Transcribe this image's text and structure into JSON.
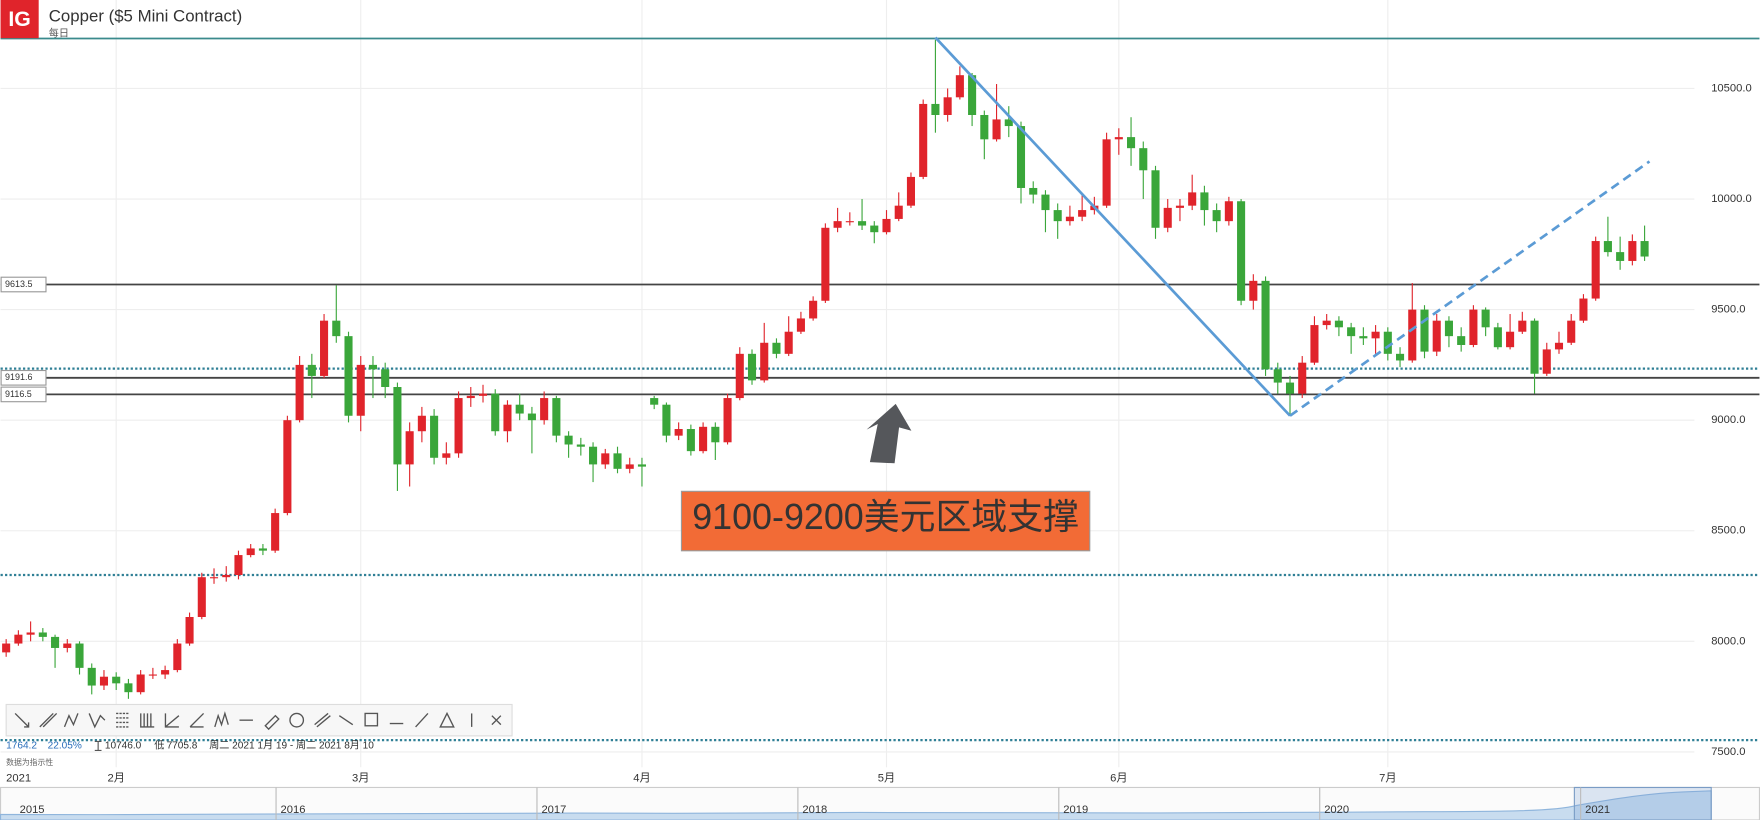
{
  "chart_data": {
    "type": "candlestick",
    "title": "Copper ($5 Mini Contract)",
    "subtitle": "每日",
    "logo": "IG",
    "x_axis_year": "2021",
    "categories": [
      null,
      null,
      null,
      null,
      null,
      null,
      null,
      null,
      null,
      "2月",
      null,
      null,
      null,
      null,
      null,
      null,
      null,
      null,
      null,
      null,
      null,
      null,
      null,
      null,
      null,
      null,
      null,
      null,
      null,
      "3月",
      null,
      null,
      null,
      null,
      null,
      null,
      null,
      null,
      null,
      null,
      null,
      null,
      null,
      null,
      null,
      null,
      null,
      null,
      null,
      null,
      null,
      null,
      "4月",
      null,
      null,
      null,
      null,
      null,
      null,
      null,
      null,
      null,
      null,
      null,
      null,
      null,
      null,
      null,
      null,
      null,
      null,
      null,
      "5月",
      null,
      null,
      null,
      null,
      null,
      null,
      null,
      null,
      null,
      null,
      null,
      null,
      null,
      null,
      null,
      null,
      null,
      null,
      "6月",
      null,
      null,
      null,
      null,
      null,
      null,
      null,
      null,
      null,
      null,
      null,
      null,
      null,
      null,
      null,
      null,
      null,
      null,
      null,
      null,
      null,
      "7月",
      null,
      null,
      null,
      null,
      null,
      null,
      null,
      null,
      null,
      null,
      null,
      null,
      null,
      null,
      null,
      null,
      null,
      null,
      null,
      null,
      null
    ],
    "open": [
      7950,
      7990,
      8030,
      8040,
      8020,
      7970,
      7990,
      7880,
      7800,
      7840,
      7810,
      7770,
      7850,
      7850,
      7870,
      7990,
      8110,
      8290,
      8290,
      8300,
      8390,
      8420,
      8410,
      8580,
      9000,
      9250,
      9200,
      9450,
      9380,
      9020,
      9250,
      9230,
      9150,
      8800,
      8950,
      9020,
      8830,
      8850,
      9100,
      9110,
      9120,
      8950,
      9070,
      9030,
      9000,
      9100,
      8930,
      8890,
      8880,
      8800,
      8850,
      8780,
      8800,
      9100,
      9070,
      8930,
      8960,
      8860,
      8970,
      8900,
      9100,
      9300,
      9180,
      9350,
      9300,
      9400,
      9460,
      9540,
      9870,
      9900,
      9900,
      9880,
      9850,
      9910,
      9970,
      10100,
      10430,
      10380,
      10460,
      10560,
      10380,
      10270,
      10360,
      10330,
      10050,
      10020,
      9950,
      9900,
      9920,
      9950,
      9970,
      10270,
      10280,
      10230,
      10130,
      9870,
      9960,
      9970,
      10030,
      9950,
      9900,
      9990,
      9540,
      9630,
      9230,
      9170,
      9120,
      9260,
      9430,
      9450,
      9420,
      9380,
      9370,
      9400,
      9300,
      9270,
      9500,
      9310,
      9450,
      9380,
      9340,
      9500,
      9420,
      9330,
      9400,
      9450,
      9210,
      9320,
      9350,
      9450,
      9550,
      9810,
      9760,
      9720,
      9810
    ],
    "high": [
      8010,
      8050,
      8090,
      8060,
      8030,
      8010,
      8000,
      7900,
      7870,
      7860,
      7830,
      7870,
      7880,
      7890,
      8010,
      8130,
      8310,
      8330,
      8340,
      8410,
      8440,
      8440,
      8600,
      9020,
      9290,
      9300,
      9480,
      9610,
      9400,
      9290,
      9290,
      9260,
      9170,
      8990,
      9060,
      9050,
      8900,
      9130,
      9150,
      9160,
      9140,
      9090,
      9120,
      9060,
      9130,
      9110,
      8950,
      8920,
      8900,
      8870,
      8880,
      8830,
      8830,
      9110,
      9080,
      8990,
      8980,
      8990,
      8990,
      9120,
      9330,
      9320,
      9440,
      9370,
      9470,
      9490,
      9560,
      9890,
      9960,
      9940,
      10000,
      9900,
      9950,
      10030,
      10120,
      10450,
      10720,
      10500,
      10600,
      10570,
      10400,
      10520,
      10420,
      10350,
      10080,
      10040,
      9980,
      9970,
      10020,
      10010,
      10300,
      10320,
      10370,
      10260,
      10150,
      10000,
      10000,
      10110,
      10060,
      9980,
      10010,
      10000,
      9660,
      9650,
      9260,
      9200,
      9290,
      9470,
      9480,
      9470,
      9440,
      9420,
      9430,
      9420,
      9330,
      9620,
      9520,
      9480,
      9470,
      9420,
      9520,
      9510,
      9440,
      9480,
      9490,
      9460,
      9350,
      9400,
      9480,
      9570,
      9830,
      9920,
      9830,
      9840,
      9880
    ],
    "low": [
      7930,
      7980,
      8000,
      8000,
      7880,
      7950,
      7850,
      7760,
      7780,
      7780,
      7740,
      7760,
      7830,
      7830,
      7860,
      7980,
      8100,
      8260,
      8270,
      8280,
      8380,
      8390,
      8400,
      8570,
      8990,
      9100,
      9190,
      9350,
      8990,
      8950,
      9100,
      9100,
      8680,
      8700,
      8900,
      8800,
      8800,
      8830,
      9060,
      9080,
      8930,
      8900,
      9000,
      8850,
      8980,
      8900,
      8830,
      8840,
      8720,
      8780,
      8760,
      8760,
      8700,
      9050,
      8900,
      8910,
      8840,
      8850,
      8820,
      8890,
      9090,
      9160,
      9170,
      9280,
      9290,
      9390,
      9450,
      9530,
      9850,
      9880,
      9860,
      9800,
      9840,
      9900,
      9960,
      10090,
      10300,
      10350,
      10450,
      10330,
      10180,
      10260,
      10280,
      9980,
      9980,
      9850,
      9820,
      9880,
      9900,
      9930,
      9960,
      10200,
      10150,
      10000,
      9820,
      9850,
      9900,
      9950,
      9880,
      9850,
      9880,
      9520,
      9500,
      9200,
      9120,
      9020,
      9100,
      9250,
      9410,
      9380,
      9300,
      9340,
      9300,
      9270,
      9240,
      9260,
      9280,
      9290,
      9330,
      9310,
      9330,
      9380,
      9320,
      9320,
      9390,
      9120,
      9200,
      9300,
      9340,
      9440,
      9540,
      9740,
      9680,
      9700,
      9720
    ],
    "close": [
      7990,
      8030,
      8040,
      8020,
      7970,
      7990,
      7880,
      7800,
      7840,
      7810,
      7770,
      7850,
      7850,
      7870,
      7990,
      8110,
      8290,
      8290,
      8300,
      8390,
      8420,
      8410,
      8580,
      9000,
      9250,
      9200,
      9450,
      9380,
      9020,
      9250,
      9230,
      9150,
      8800,
      8950,
      9020,
      8830,
      8850,
      9100,
      9110,
      9120,
      8950,
      9070,
      9030,
      9000,
      9100,
      8930,
      8890,
      8880,
      8800,
      8850,
      8780,
      8800,
      8790,
      9070,
      8930,
      8960,
      8860,
      8970,
      8900,
      9100,
      9300,
      9180,
      9350,
      9300,
      9400,
      9460,
      9540,
      9870,
      9900,
      9900,
      9880,
      9850,
      9910,
      9970,
      10100,
      10430,
      10380,
      10460,
      10560,
      10380,
      10270,
      10360,
      10330,
      10050,
      10020,
      9950,
      9900,
      9920,
      9950,
      9970,
      10270,
      10280,
      10230,
      10130,
      9870,
      9960,
      9970,
      10030,
      9950,
      9900,
      9990,
      9540,
      9630,
      9230,
      9170,
      9120,
      9260,
      9430,
      9450,
      9420,
      9380,
      9370,
      9400,
      9300,
      9270,
      9500,
      9310,
      9450,
      9380,
      9340,
      9500,
      9420,
      9330,
      9400,
      9450,
      9210,
      9320,
      9350,
      9450,
      9550,
      9810,
      9760,
      9720,
      9810,
      9740
    ],
    "up_color": "#e0242b",
    "down_color": "#3aa63a",
    "ylim": [
      7400,
      10900
    ],
    "yticks": [
      {
        "value": 10500,
        "label": "10500.0"
      },
      {
        "value": 10000,
        "label": "10000.0"
      },
      {
        "value": 9500,
        "label": "9500.0"
      },
      {
        "value": 9000,
        "label": "9000.0"
      },
      {
        "value": 8500,
        "label": "8500.0"
      },
      {
        "value": 8000,
        "label": "8000.0"
      },
      {
        "value": 7500,
        "label": "7500.0"
      }
    ],
    "grid": true,
    "levels": [
      {
        "value": 10726,
        "style": "solid",
        "color": "#3a8a8c"
      },
      {
        "value": 9613.5,
        "style": "solid",
        "color": "#444444",
        "label_box": true
      },
      {
        "value": 9233,
        "style": "dotted",
        "color": "#2f7f95"
      },
      {
        "value": 9191.6,
        "style": "solid",
        "color": "#444444",
        "label_box": true
      },
      {
        "value": 9116.5,
        "style": "solid",
        "color": "#444444",
        "label_box": true
      },
      {
        "value": 8300,
        "style": "dotted",
        "color": "#2f7f95"
      },
      {
        "value": 7553,
        "style": "dotted",
        "color": "#2f7f95"
      }
    ],
    "trendlines": [
      {
        "x": [
          76,
          105
        ],
        "y": [
          10730,
          9020
        ],
        "style": "solid",
        "color": "#5b9bd5"
      },
      {
        "x": [
          105,
          134.4
        ],
        "y": [
          9020,
          10170
        ],
        "style": "dashed",
        "color": "#5b9bd5"
      }
    ],
    "annotation": "9100-9200美元区域支撑",
    "stats": {
      "change": "1764.2",
      "change_pct": "22.05%",
      "high": "10746.0",
      "low_label": "低",
      "low": "7705.8",
      "range": "周二 2021 1月 19 - 周二 2021 8月 10"
    },
    "disclaimer": "数据为指示性",
    "navigator_years": [
      "2015",
      "2016",
      "2017",
      "2018",
      "2019",
      "2020",
      "2021"
    ]
  }
}
